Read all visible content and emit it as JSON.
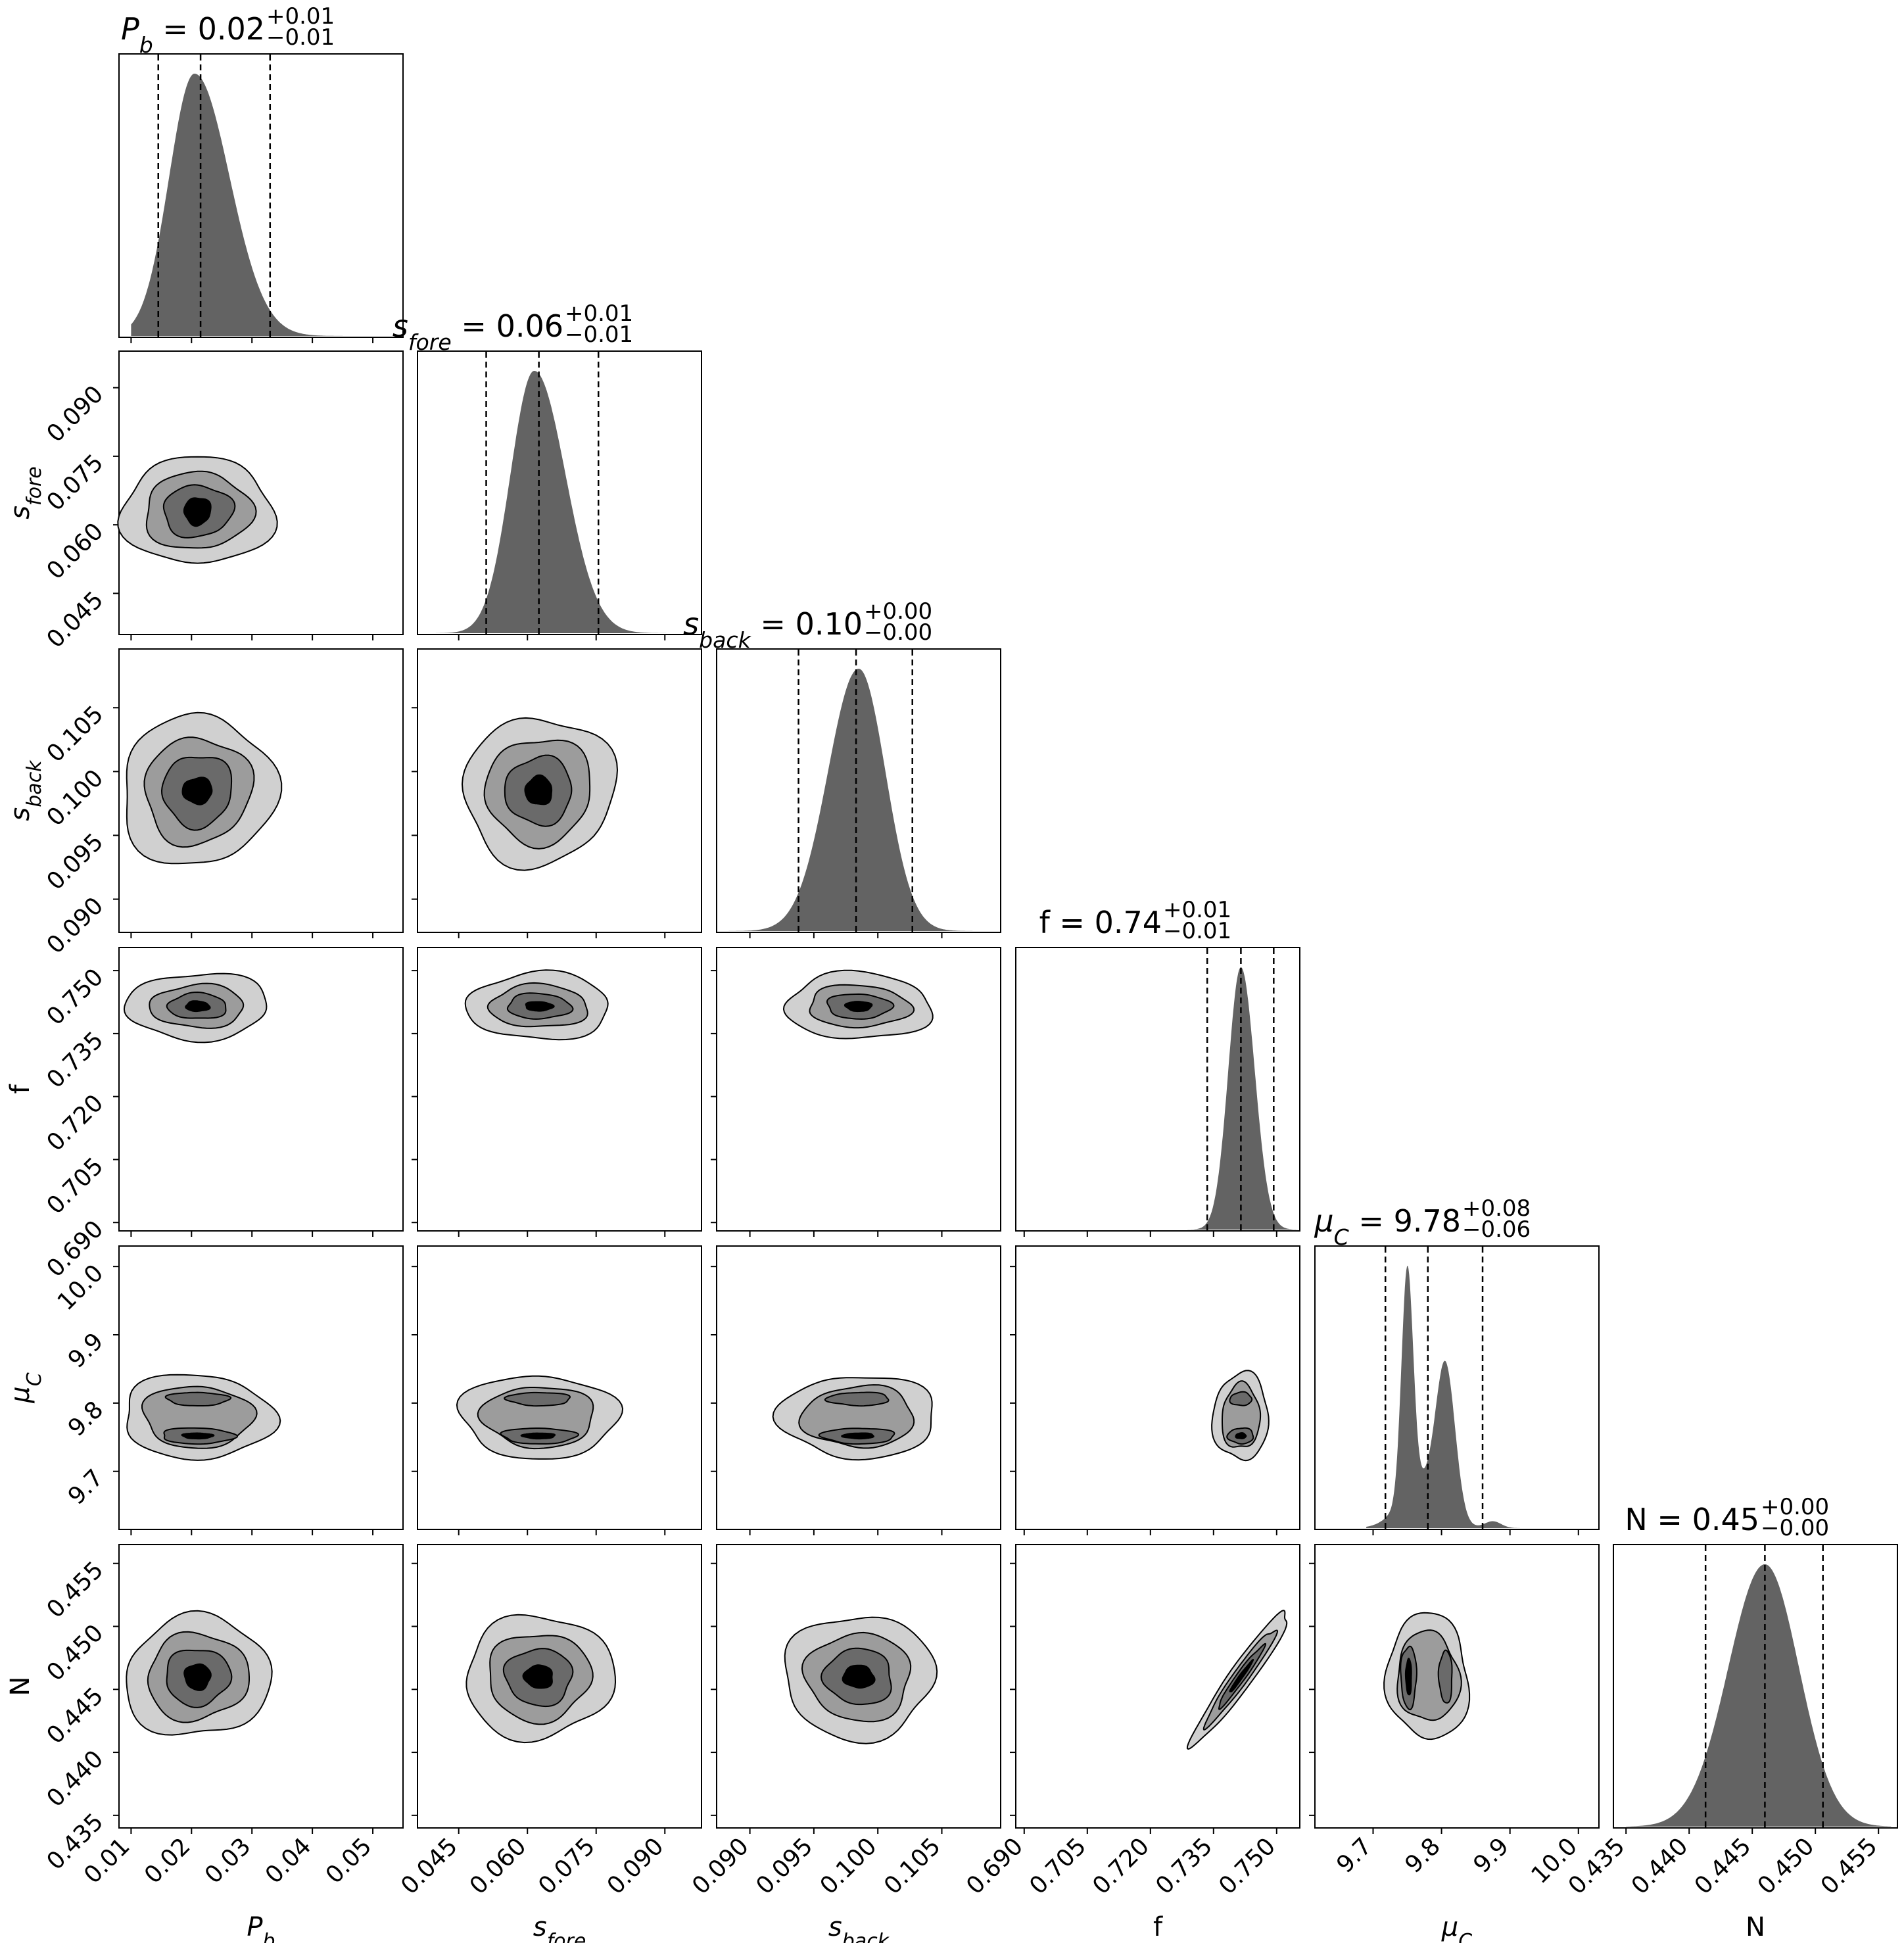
{
  "chart_data": {
    "type": "corner",
    "colors": {
      "histogram": "#636363",
      "contour_levels": [
        "#d0d0d0",
        "#9c9c9c",
        "#6a6a6a",
        "#000000"
      ],
      "lines": "#000000"
    },
    "parameters": [
      {
        "key": "Pb",
        "label": "P",
        "label_sub": "b",
        "range": [
          0.008,
          0.055
        ],
        "ticks": [
          "0.01",
          "0.02",
          "0.03",
          "0.04",
          "0.05"
        ],
        "title_value": "0.02",
        "title_plus": "+0.01",
        "title_minus": "−0.01",
        "quantiles": [
          0.0145,
          0.0215,
          0.033
        ],
        "marginal": {
          "type": "skewnorm",
          "mu": 0.0205,
          "sl": 0.0042,
          "sr": 0.0058,
          "lo": 0.01,
          "hi": 0.052
        }
      },
      {
        "key": "sfore",
        "label": "s",
        "label_sub": "fore",
        "range": [
          0.036,
          0.098
        ],
        "ticks": [
          "0.045",
          "0.060",
          "0.075",
          "0.090"
        ],
        "title_value": "0.06",
        "title_plus": "+0.01",
        "title_minus": "−0.01",
        "quantiles": [
          0.051,
          0.0625,
          0.0755
        ],
        "marginal": {
          "type": "skewnorm",
          "mu": 0.0615,
          "sl": 0.0052,
          "sr": 0.0068,
          "lo": 0.04,
          "hi": 0.096
        }
      },
      {
        "key": "sback",
        "label": "s",
        "label_sub": "back",
        "range": [
          0.0874,
          0.1096
        ],
        "ticks": [
          "0.090",
          "0.095",
          "0.100",
          "0.105"
        ],
        "title_value": "0.10",
        "title_plus": "+0.00",
        "title_minus": "−0.00",
        "quantiles": [
          0.0938,
          0.0983,
          0.1027
        ],
        "marginal": {
          "type": "skewnorm",
          "mu": 0.0985,
          "sl": 0.0024,
          "sr": 0.0021,
          "lo": 0.088,
          "hi": 0.1095
        }
      },
      {
        "key": "f",
        "label": "f",
        "label_sub": "",
        "range": [
          0.688,
          0.7555
        ],
        "ticks": [
          "0.690",
          "0.705",
          "0.720",
          "0.735",
          "0.750"
        ],
        "title_value": "0.74",
        "title_plus": "+0.01",
        "title_minus": "−0.01",
        "quantiles": [
          0.7335,
          0.7415,
          0.7493
        ],
        "marginal": {
          "type": "skewnorm",
          "mu": 0.7415,
          "sl": 0.003,
          "sr": 0.0033,
          "lo": 0.72,
          "hi": 0.755
        }
      },
      {
        "key": "muC",
        "label": "μ",
        "label_sub": "C",
        "range": [
          9.615,
          10.03
        ],
        "ticks": [
          "9.7",
          "9.8",
          "9.9",
          "10.0"
        ],
        "title_value": "9.78",
        "title_plus": "+0.08",
        "title_minus": "−0.06",
        "quantiles": [
          9.718,
          9.78,
          9.86
        ],
        "marginal": {
          "type": "mix",
          "lo": 9.69,
          "hi": 9.92,
          "components": [
            {
              "mu": 9.75,
              "s": 0.0085,
              "w": 1.0
            },
            {
              "mu": 9.806,
              "s": 0.014,
              "w": 0.64
            },
            {
              "mu": 9.77,
              "s": 0.03,
              "w": 0.2
            },
            {
              "mu": 9.875,
              "s": 0.012,
              "w": 0.03
            }
          ]
        }
      },
      {
        "key": "N",
        "label": "N",
        "label_sub": "",
        "range": [
          0.434,
          0.4565
        ],
        "ticks": [
          "0.435",
          "0.440",
          "0.445",
          "0.450",
          "0.455"
        ],
        "title_value": "0.45",
        "title_plus": "+0.00",
        "title_minus": "−0.00",
        "quantiles": [
          0.4413,
          0.446,
          0.4506
        ],
        "marginal": {
          "type": "skewnorm",
          "mu": 0.446,
          "sl": 0.0029,
          "sr": 0.0027,
          "lo": 0.435,
          "hi": 0.456
        }
      }
    ],
    "contours": [
      {
        "row": 1,
        "col": 0,
        "center": [
          0.021,
          0.063
        ],
        "radii": [
          [
            0.0123,
            0.012
          ],
          [
            0.0087,
            0.0086
          ],
          [
            0.0057,
            0.0057
          ],
          [
            0.0022,
            0.003
          ]
        ]
      },
      {
        "row": 2,
        "col": 0,
        "center": [
          0.021,
          0.0985
        ],
        "radii": [
          [
            0.0125,
            0.006
          ],
          [
            0.0088,
            0.0042
          ],
          [
            0.0058,
            0.0028
          ],
          [
            0.0025,
            0.001
          ]
        ]
      },
      {
        "row": 2,
        "col": 1,
        "center": [
          0.0625,
          0.0985
        ],
        "radii": [
          [
            0.0165,
            0.0058
          ],
          [
            0.0117,
            0.0041
          ],
          [
            0.0075,
            0.0026
          ],
          [
            0.003,
            0.0011
          ]
        ]
      },
      {
        "row": 3,
        "col": 0,
        "center": [
          0.021,
          0.7415
        ],
        "radii": [
          [
            0.012,
            0.0078
          ],
          [
            0.008,
            0.005
          ],
          [
            0.005,
            0.003
          ],
          [
            0.002,
            0.0012
          ]
        ]
      },
      {
        "row": 3,
        "col": 1,
        "center": [
          0.0625,
          0.7415
        ],
        "radii": [
          [
            0.016,
            0.0078
          ],
          [
            0.011,
            0.005
          ],
          [
            0.007,
            0.003
          ],
          [
            0.003,
            0.0011
          ]
        ]
      },
      {
        "row": 3,
        "col": 2,
        "center": [
          0.0985,
          0.7415
        ],
        "radii": [
          [
            0.0058,
            0.0078
          ],
          [
            0.004,
            0.005
          ],
          [
            0.0025,
            0.003
          ],
          [
            0.001,
            0.0012
          ]
        ]
      },
      {
        "row": 4,
        "col": 0,
        "center": [
          0.021,
          9.78
        ],
        "radii": [
          [
            0.0125,
            0.062
          ],
          [
            0.009,
            0.046
          ],
          [
            0.006,
            0.028
          ],
          [
            0.0025,
            0.01
          ]
        ]
      },
      {
        "row": 4,
        "col": 1,
        "center": [
          0.0625,
          9.78
        ],
        "radii": [
          [
            0.017,
            0.062
          ],
          [
            0.012,
            0.046
          ],
          [
            0.008,
            0.028
          ],
          [
            0.0035,
            0.01
          ]
        ]
      },
      {
        "row": 4,
        "col": 2,
        "center": [
          0.0985,
          9.78
        ],
        "radii": [
          [
            0.006,
            0.062
          ],
          [
            0.0043,
            0.046
          ],
          [
            0.0028,
            0.028
          ],
          [
            0.0012,
            0.01
          ]
        ]
      },
      {
        "row": 4,
        "col": 3,
        "center": [
          0.7415,
          9.78
        ],
        "radii": [
          [
            0.0065,
            0.065
          ],
          [
            0.0045,
            0.048
          ],
          [
            0.003,
            0.028
          ],
          [
            0.0012,
            0.01
          ]
        ]
      },
      {
        "row": 5,
        "col": 0,
        "center": [
          0.021,
          0.446
        ],
        "radii": [
          [
            0.012,
            0.0048
          ],
          [
            0.0085,
            0.0034
          ],
          [
            0.0055,
            0.0022
          ],
          [
            0.0022,
            0.001
          ]
        ]
      },
      {
        "row": 5,
        "col": 1,
        "center": [
          0.0625,
          0.446
        ],
        "radii": [
          [
            0.0165,
            0.0048
          ],
          [
            0.0115,
            0.0034
          ],
          [
            0.0075,
            0.0022
          ],
          [
            0.0032,
            0.0009
          ]
        ]
      },
      {
        "row": 5,
        "col": 2,
        "center": [
          0.0985,
          0.446
        ],
        "radii": [
          [
            0.006,
            0.0048
          ],
          [
            0.0042,
            0.0034
          ],
          [
            0.0027,
            0.0022
          ],
          [
            0.0012,
            0.0009
          ]
        ]
      },
      {
        "row": 5,
        "col": 3,
        "center": [
          0.7415,
          0.446
        ],
        "radii": [
          [
            0.003,
            0.0035
          ],
          [
            0.002,
            0.0025
          ],
          [
            0.0012,
            0.0016
          ],
          [
            0.0005,
            0.0008
          ]
        ],
        "correlated": true
      },
      {
        "row": 5,
        "col": 4,
        "center": [
          9.78,
          0.446
        ],
        "radii": [
          [
            0.06,
            0.005
          ],
          [
            0.045,
            0.0036
          ],
          [
            0.028,
            0.0024
          ],
          [
            0.01,
            0.0014
          ]
        ]
      }
    ]
  }
}
